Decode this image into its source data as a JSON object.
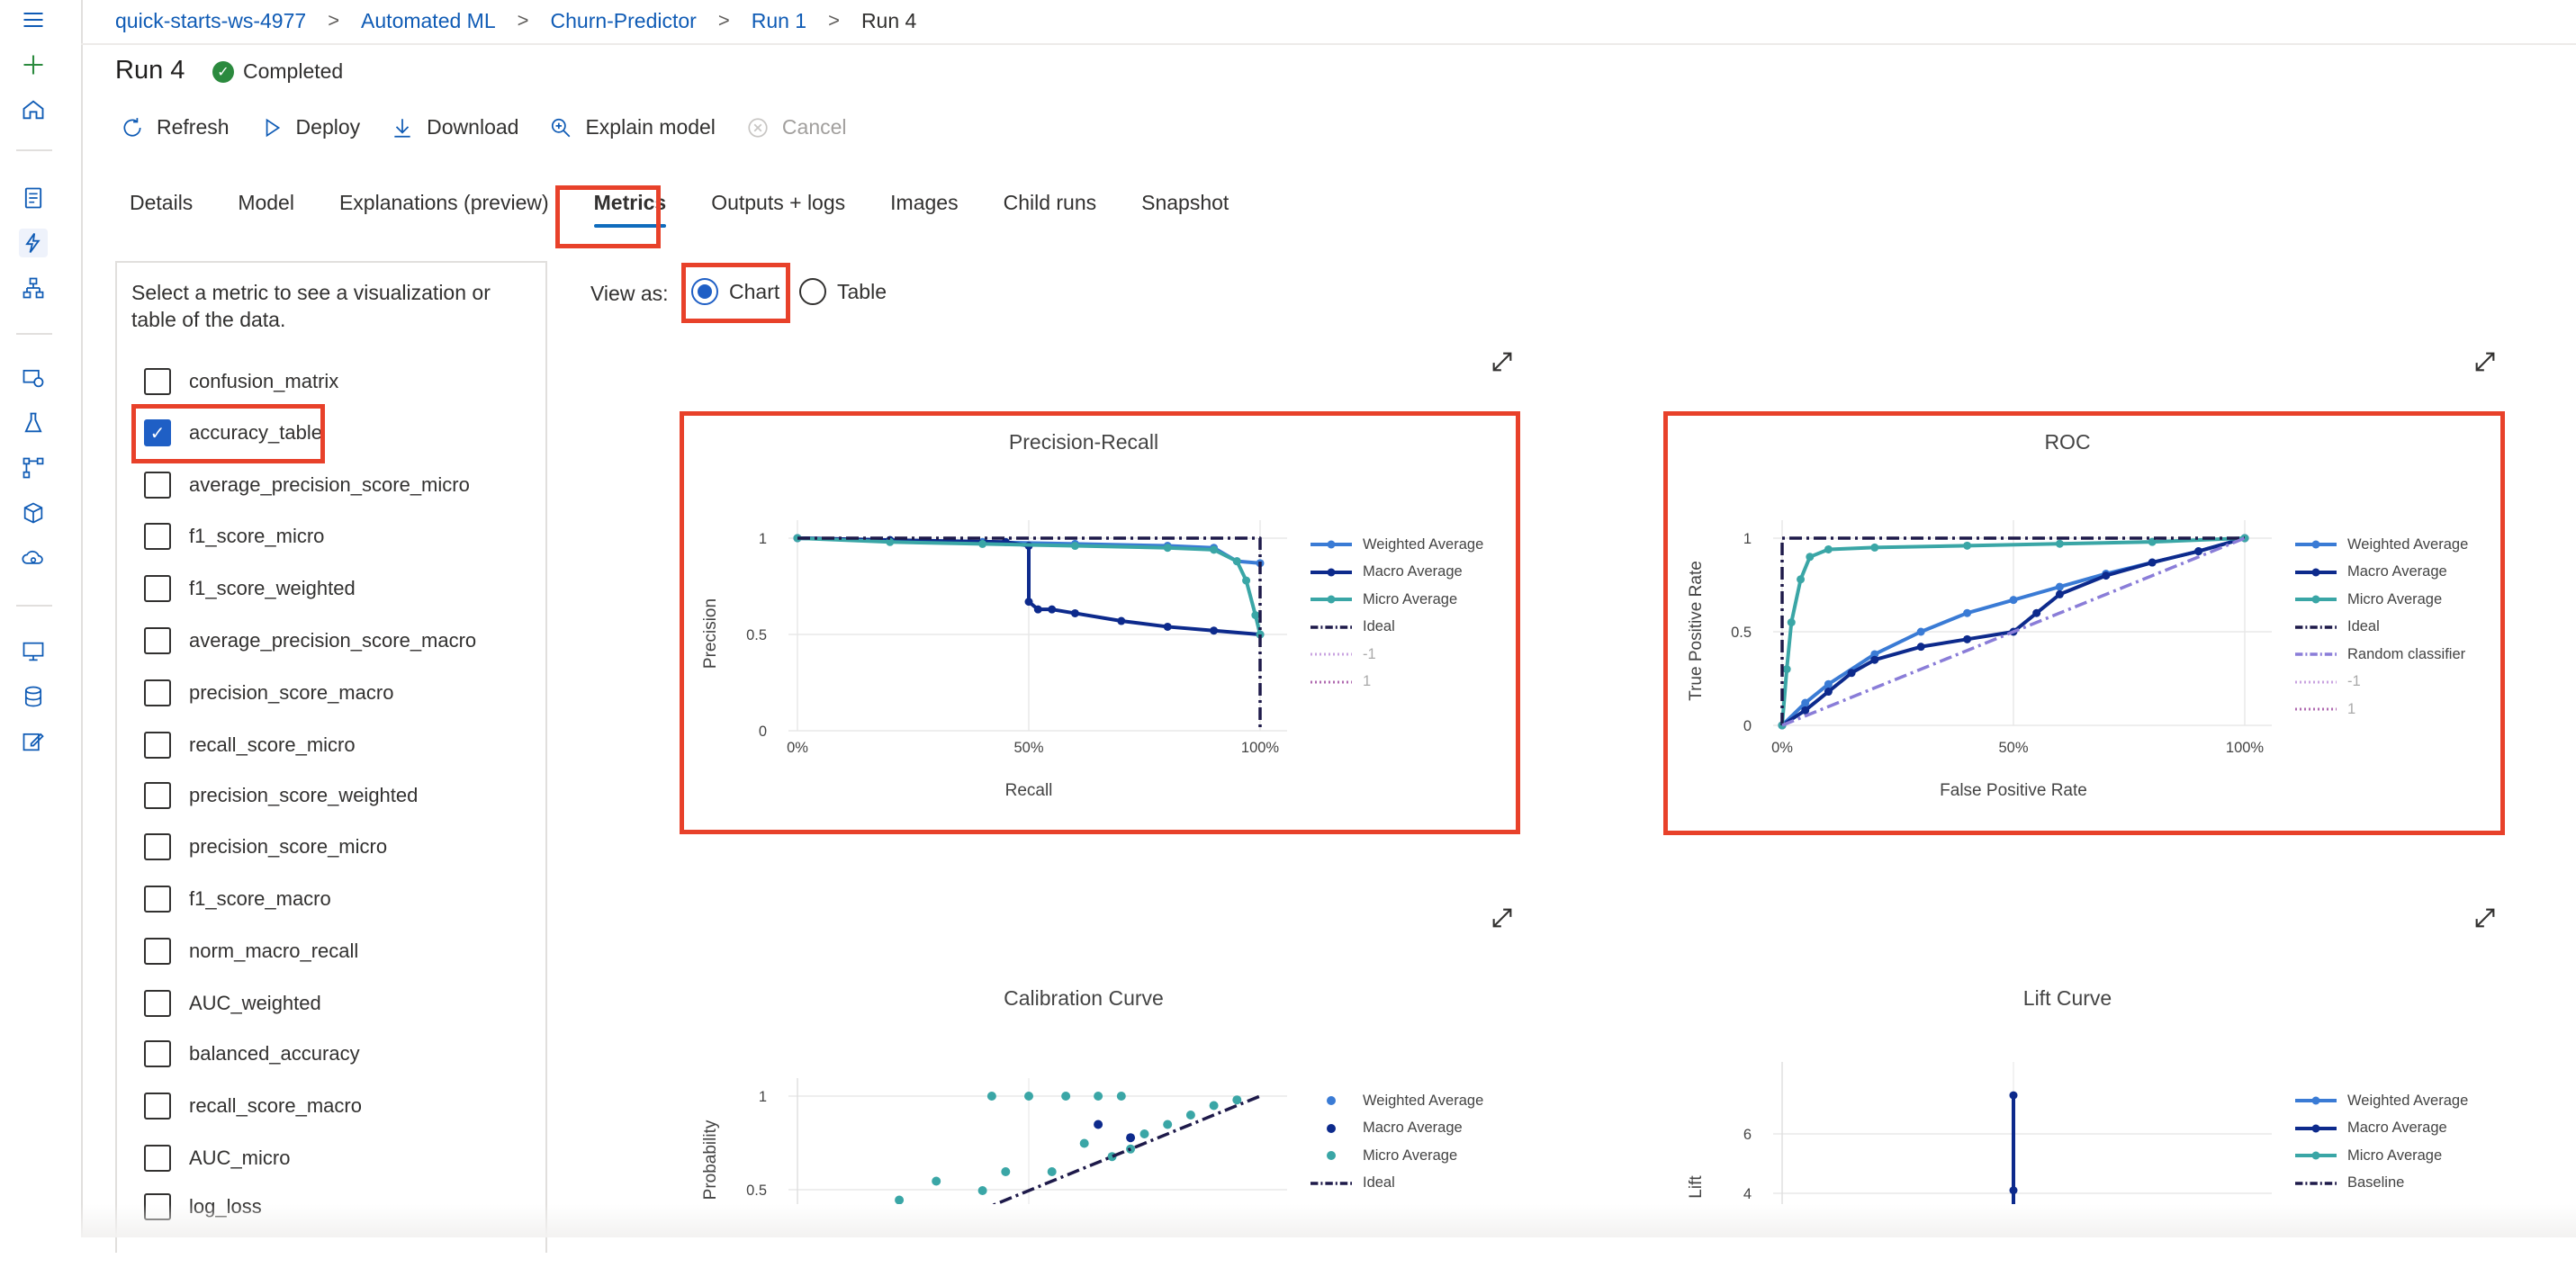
{
  "breadcrumb": {
    "workspace": "quick-starts-ws-4977",
    "section": "Automated ML",
    "experiment": "Churn-Predictor",
    "parent_run": "Run 1",
    "current": "Run 4"
  },
  "header": {
    "title": "Run 4",
    "status": "Completed"
  },
  "toolbar": {
    "refresh": "Refresh",
    "deploy": "Deploy",
    "download": "Download",
    "explain": "Explain model",
    "cancel": "Cancel"
  },
  "tabs": [
    {
      "label": "Details"
    },
    {
      "label": "Model"
    },
    {
      "label": "Explanations (preview)"
    },
    {
      "label": "Metrics"
    },
    {
      "label": "Outputs + logs"
    },
    {
      "label": "Images"
    },
    {
      "label": "Child runs"
    },
    {
      "label": "Snapshot"
    }
  ],
  "metrics_panel": {
    "intro": "Select a metric to see a visualization or table of the data.",
    "items": [
      {
        "label": "confusion_matrix",
        "checked": false
      },
      {
        "label": "accuracy_table",
        "checked": true
      },
      {
        "label": "average_precision_score_micro",
        "checked": false
      },
      {
        "label": "f1_score_micro",
        "checked": false
      },
      {
        "label": "f1_score_weighted",
        "checked": false
      },
      {
        "label": "average_precision_score_macro",
        "checked": false
      },
      {
        "label": "precision_score_macro",
        "checked": false
      },
      {
        "label": "recall_score_micro",
        "checked": false
      },
      {
        "label": "precision_score_weighted",
        "checked": false
      },
      {
        "label": "precision_score_micro",
        "checked": false
      },
      {
        "label": "f1_score_macro",
        "checked": false
      },
      {
        "label": "norm_macro_recall",
        "checked": false
      },
      {
        "label": "AUC_weighted",
        "checked": false
      },
      {
        "label": "balanced_accuracy",
        "checked": false
      },
      {
        "label": "recall_score_macro",
        "checked": false
      },
      {
        "label": "AUC_micro",
        "checked": false
      },
      {
        "label": "log_loss",
        "checked": false
      }
    ]
  },
  "view_as": {
    "label": "View as:",
    "chart": "Chart",
    "table": "Table",
    "selected": "Chart"
  },
  "colors": {
    "weighted": "#3a7bd5",
    "macro": "#0d2a8c",
    "micro": "#3aa6a6",
    "ideal": "#1e1a4a",
    "random": "#8a7dd8",
    "neg": "#c9a3e0",
    "pos": "#b06bb0",
    "highlight": "#e8412a"
  },
  "chart_data": [
    {
      "type": "line",
      "title": "Precision-Recall",
      "xlabel": "Recall",
      "ylabel": "Precision",
      "xlim": [
        0,
        1
      ],
      "ylim": [
        0,
        1
      ],
      "x_ticks": [
        "0%",
        "50%",
        "100%"
      ],
      "y_ticks": [
        "0",
        "0.5",
        "1"
      ],
      "legend": [
        "Weighted Average",
        "Macro Average",
        "Micro Average",
        "Ideal",
        "-1",
        "1"
      ],
      "series": [
        {
          "name": "Weighted Average",
          "x": [
            0,
            0.2,
            0.4,
            0.6,
            0.8,
            0.9,
            0.95,
            1.0
          ],
          "y": [
            1.0,
            0.99,
            0.98,
            0.97,
            0.96,
            0.95,
            0.88,
            0.87
          ]
        },
        {
          "name": "Macro Average",
          "x": [
            0,
            0.2,
            0.45,
            0.5,
            0.5,
            0.52,
            0.55,
            0.6,
            0.7,
            0.8,
            0.9,
            1.0
          ],
          "y": [
            1.0,
            0.99,
            0.98,
            0.96,
            0.67,
            0.63,
            0.63,
            0.61,
            0.57,
            0.54,
            0.52,
            0.5
          ]
        },
        {
          "name": "Micro Average",
          "x": [
            0,
            0.2,
            0.4,
            0.6,
            0.8,
            0.9,
            0.95,
            0.97,
            0.99,
            1.0
          ],
          "y": [
            1.0,
            0.98,
            0.97,
            0.96,
            0.95,
            0.94,
            0.88,
            0.78,
            0.6,
            0.5
          ]
        },
        {
          "name": "Ideal",
          "x": [
            0,
            1,
            1
          ],
          "y": [
            1,
            1,
            0
          ]
        }
      ]
    },
    {
      "type": "line",
      "title": "ROC",
      "xlabel": "False Positive Rate",
      "ylabel": "True Positive Rate",
      "xlim": [
        0,
        1
      ],
      "ylim": [
        0,
        1
      ],
      "x_ticks": [
        "0%",
        "50%",
        "100%"
      ],
      "y_ticks": [
        "0",
        "0.5",
        "1"
      ],
      "legend": [
        "Weighted Average",
        "Macro Average",
        "Micro Average",
        "Ideal",
        "Random classifier",
        "-1",
        "1"
      ],
      "series": [
        {
          "name": "Weighted Average",
          "x": [
            0,
            0.05,
            0.1,
            0.2,
            0.3,
            0.4,
            0.5,
            0.6,
            0.7,
            0.8,
            0.9,
            1.0
          ],
          "y": [
            0,
            0.12,
            0.22,
            0.38,
            0.5,
            0.6,
            0.67,
            0.74,
            0.81,
            0.87,
            0.93,
            1.0
          ]
        },
        {
          "name": "Macro Average",
          "x": [
            0,
            0.05,
            0.1,
            0.15,
            0.2,
            0.3,
            0.4,
            0.5,
            0.55,
            0.6,
            0.7,
            0.8,
            0.9,
            1.0
          ],
          "y": [
            0,
            0.08,
            0.18,
            0.28,
            0.35,
            0.42,
            0.46,
            0.5,
            0.6,
            0.7,
            0.8,
            0.87,
            0.93,
            1.0
          ]
        },
        {
          "name": "Micro Average",
          "x": [
            0,
            0.01,
            0.02,
            0.04,
            0.06,
            0.1,
            0.2,
            0.4,
            0.6,
            0.8,
            1.0
          ],
          "y": [
            0,
            0.3,
            0.55,
            0.78,
            0.9,
            0.94,
            0.95,
            0.96,
            0.97,
            0.98,
            1.0
          ]
        },
        {
          "name": "Ideal",
          "x": [
            0,
            0,
            1
          ],
          "y": [
            0,
            1,
            1
          ]
        },
        {
          "name": "Random classifier",
          "x": [
            0,
            1
          ],
          "y": [
            0,
            1
          ]
        }
      ]
    },
    {
      "type": "scatter",
      "title": "Calibration Curve",
      "xlabel": "",
      "ylabel": "Probability",
      "xlim": [
        0,
        1
      ],
      "ylim": [
        0,
        1
      ],
      "y_ticks": [
        "0.5",
        "1"
      ],
      "legend": [
        "Weighted Average",
        "Macro Average",
        "Micro Average",
        "Ideal"
      ],
      "series": [
        {
          "name": "Micro Average",
          "x": [
            0.22,
            0.3,
            0.4,
            0.42,
            0.45,
            0.5,
            0.55,
            0.58,
            0.62,
            0.65,
            0.68,
            0.7,
            0.72,
            0.75,
            0.8,
            0.85,
            0.9,
            0.95
          ],
          "y": [
            0.45,
            0.55,
            0.5,
            1.0,
            0.6,
            1.0,
            0.6,
            1.0,
            0.75,
            1.0,
            0.68,
            1.0,
            0.72,
            0.8,
            0.85,
            0.9,
            0.95,
            0.98
          ]
        },
        {
          "name": "Macro Average",
          "x": [
            0.65,
            0.72
          ],
          "y": [
            0.85,
            0.78
          ]
        },
        {
          "name": "Ideal",
          "x": [
            0,
            1
          ],
          "y": [
            0,
            1
          ]
        }
      ]
    },
    {
      "type": "line",
      "title": "Lift Curve",
      "xlabel": "",
      "ylabel": "Lift",
      "y_ticks": [
        "4",
        "6"
      ],
      "legend": [
        "Weighted Average",
        "Macro Average",
        "Micro Average",
        "Baseline"
      ],
      "series": [
        {
          "name": "Macro Average",
          "x": [
            0.5,
            0.5,
            0.5
          ],
          "y": [
            7.3,
            4.1,
            3.5
          ]
        }
      ]
    }
  ]
}
